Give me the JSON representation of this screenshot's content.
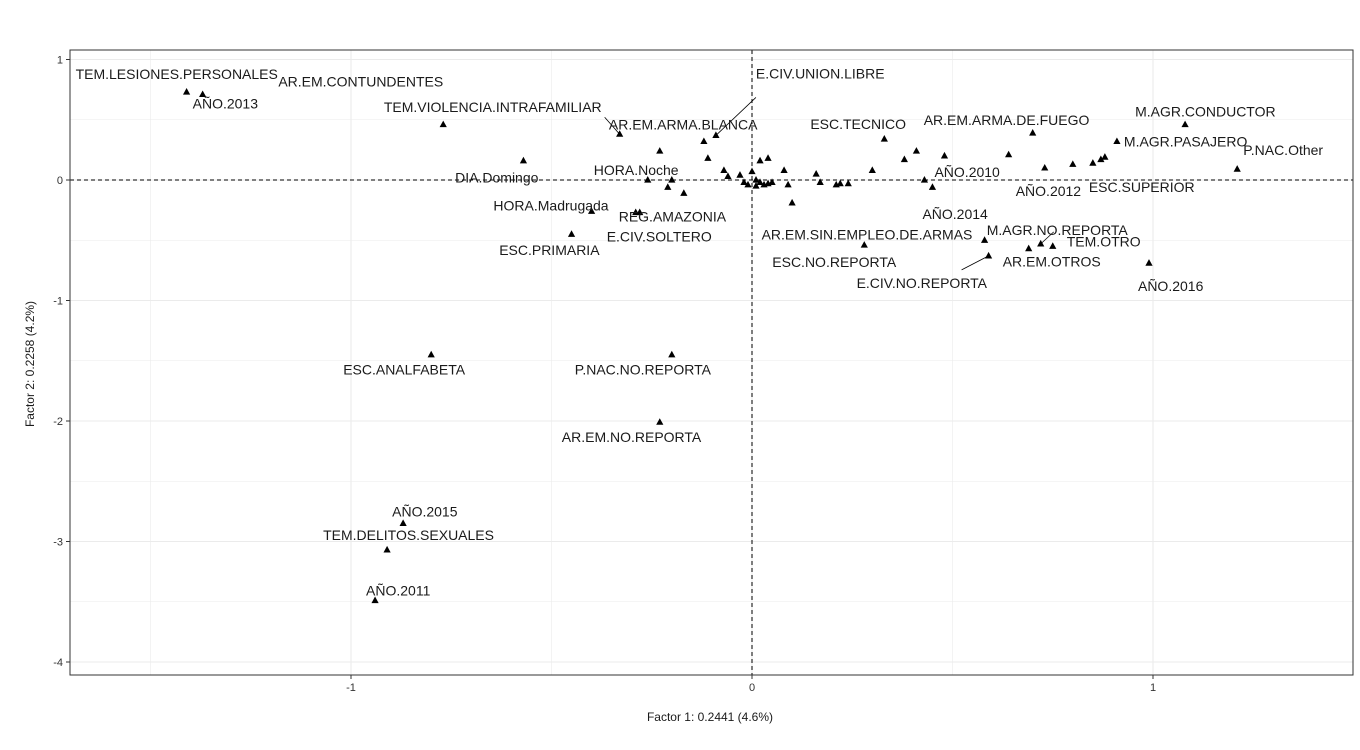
{
  "chart_data": {
    "type": "scatter",
    "xlabel": "Factor 1: 0.2441 (4.6%)",
    "ylabel": "Factor 2: 0.2258 (4.2%)",
    "xlim": [
      -1.7,
      1.5
    ],
    "ylim": [
      -4.1,
      1.05
    ],
    "x_ticks": [
      -1,
      0,
      1
    ],
    "y_ticks": [
      1,
      0,
      -1,
      -2,
      -3,
      -4
    ],
    "x_tick_labels": [
      "-1",
      "0",
      "1"
    ],
    "y_tick_labels": [
      "1",
      "0",
      "-1",
      "-2",
      "-3",
      "-4"
    ],
    "reference_lines": {
      "x": 0,
      "y": 0,
      "style": "dashed"
    },
    "grid": true,
    "marker": "triangle",
    "colors": {
      "points": "#000000",
      "grid": "#ebebeb",
      "border": "#333333"
    },
    "labeled_points": [
      {
        "label": "TEM.LESIONES.PERSONALES",
        "x": -1.41,
        "y": 0.73
      },
      {
        "label": "AÑO.2013",
        "x": -1.37,
        "y": 0.71
      },
      {
        "label": "TEM.VIOLENCIA.INTRAFAMILIAR",
        "x": -0.33,
        "y": 0.38
      },
      {
        "label": "AR.EM.CONTUNDENTES",
        "x": -0.77,
        "y": 0.46
      },
      {
        "label": "AR.EM.ARMA.BLANCA",
        "x": -0.12,
        "y": 0.32
      },
      {
        "label": "E.CIV.UNION.LIBRE",
        "x": -0.09,
        "y": 0.37
      },
      {
        "label": "HORA.Noche",
        "x": -0.23,
        "y": 0.24
      },
      {
        "label": "DIA.Domingo",
        "x": -0.57,
        "y": 0.16
      },
      {
        "label": "HORA.Madrugada",
        "x": -0.4,
        "y": -0.26
      },
      {
        "label": "REG.AMAZONIA",
        "x": -0.28,
        "y": -0.27
      },
      {
        "label": "E.CIV.SOLTERO",
        "x": -0.29,
        "y": -0.27
      },
      {
        "label": "ESC.PRIMARIA",
        "x": -0.45,
        "y": -0.45
      },
      {
        "label": "ESC.TECNICO",
        "x": 0.33,
        "y": 0.34
      },
      {
        "label": "AR.EM.ARMA.DE.FUEGO",
        "x": 0.7,
        "y": 0.39
      },
      {
        "label": "AÑO.2010",
        "x": 0.48,
        "y": 0.2
      },
      {
        "label": "AÑO.2012",
        "x": 0.73,
        "y": 0.1
      },
      {
        "label": "ESC.SUPERIOR",
        "x": 0.85,
        "y": 0.14
      },
      {
        "label": "AÑO.2014",
        "x": 0.45,
        "y": -0.06
      },
      {
        "label": "M.AGR.CONDUCTOR",
        "x": 1.08,
        "y": 0.46
      },
      {
        "label": "M.AGR.PASAJERO",
        "x": 0.91,
        "y": 0.32
      },
      {
        "label": "P.NAC.Other",
        "x": 1.21,
        "y": 0.09
      },
      {
        "label": "M.AGR.NO.REPORTA",
        "x": 0.72,
        "y": -0.53
      },
      {
        "label": "AR.EM.SIN.EMPLEO.DE.ARMAS",
        "x": 0.58,
        "y": -0.5
      },
      {
        "label": "ESC.NO.REPORTA",
        "x": 0.28,
        "y": -0.54
      },
      {
        "label": "TEM.OTRO",
        "x": 0.75,
        "y": -0.55
      },
      {
        "label": "AR.EM.OTROS",
        "x": 0.69,
        "y": -0.57
      },
      {
        "label": "E.CIV.NO.REPORTA",
        "x": 0.59,
        "y": -0.63
      },
      {
        "label": "AÑO.2016",
        "x": 0.99,
        "y": -0.69
      },
      {
        "label": "ESC.ANALFABETA",
        "x": -0.8,
        "y": -1.45
      },
      {
        "label": "P.NAC.NO.REPORTA",
        "x": -0.2,
        "y": -1.45
      },
      {
        "label": "AR.EM.NO.REPORTA",
        "x": -0.23,
        "y": -2.01
      },
      {
        "label": "AÑO.2015",
        "x": -0.87,
        "y": -2.85
      },
      {
        "label": "TEM.DELITOS.SEXUALES",
        "x": -0.91,
        "y": -3.07
      },
      {
        "label": "AÑO.2011",
        "x": -0.94,
        "y": -3.49
      }
    ],
    "unlabeled_points": [
      {
        "x": -0.26,
        "y": 0.0
      },
      {
        "x": -0.21,
        "y": -0.06
      },
      {
        "x": -0.2,
        "y": 0.0
      },
      {
        "x": -0.17,
        "y": -0.11
      },
      {
        "x": -0.11,
        "y": 0.18
      },
      {
        "x": -0.07,
        "y": 0.08
      },
      {
        "x": -0.06,
        "y": 0.03
      },
      {
        "x": -0.03,
        "y": 0.04
      },
      {
        "x": -0.02,
        "y": -0.02
      },
      {
        "x": -0.01,
        "y": -0.04
      },
      {
        "x": 0.0,
        "y": 0.07
      },
      {
        "x": 0.01,
        "y": 0.0
      },
      {
        "x": 0.01,
        "y": -0.05
      },
      {
        "x": 0.02,
        "y": 0.16
      },
      {
        "x": 0.02,
        "y": -0.02
      },
      {
        "x": 0.03,
        "y": -0.04
      },
      {
        "x": 0.04,
        "y": 0.18
      },
      {
        "x": 0.04,
        "y": -0.03
      },
      {
        "x": 0.05,
        "y": -0.02
      },
      {
        "x": 0.08,
        "y": 0.08
      },
      {
        "x": 0.09,
        "y": -0.04
      },
      {
        "x": 0.1,
        "y": -0.19
      },
      {
        "x": 0.16,
        "y": 0.05
      },
      {
        "x": 0.17,
        "y": -0.02
      },
      {
        "x": 0.21,
        "y": -0.04
      },
      {
        "x": 0.22,
        "y": -0.03
      },
      {
        "x": 0.24,
        "y": -0.03
      },
      {
        "x": 0.3,
        "y": 0.08
      },
      {
        "x": 0.38,
        "y": 0.17
      },
      {
        "x": 0.41,
        "y": 0.24
      },
      {
        "x": 0.43,
        "y": 0.0
      },
      {
        "x": 0.64,
        "y": 0.21
      },
      {
        "x": 0.8,
        "y": 0.13
      },
      {
        "x": 0.87,
        "y": 0.17
      },
      {
        "x": 0.88,
        "y": 0.19
      }
    ]
  }
}
